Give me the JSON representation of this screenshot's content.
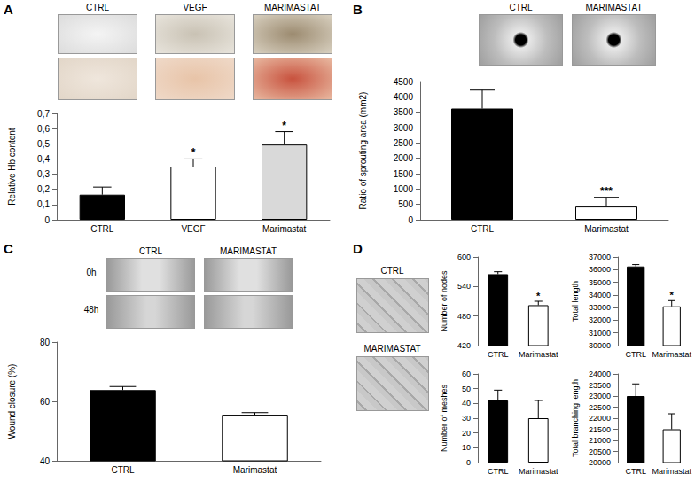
{
  "chart_data": [
    {
      "type": "bar",
      "y_label": "Relative Hb content",
      "categories": [
        "CTRL",
        "VEGF",
        "Marimastat"
      ],
      "values": [
        0.165,
        0.35,
        0.495
      ],
      "errors": [
        0.05,
        0.05,
        0.085
      ],
      "significance": [
        null,
        "*",
        "*"
      ],
      "colors": [
        "#000000",
        "#ffffff",
        "#d9d9d9"
      ],
      "ylim": [
        0,
        0.7
      ],
      "yticks": [
        0,
        {
          "value": 0.1,
          "label": "0,1"
        },
        {
          "value": 0.2,
          "label": "0,2"
        },
        {
          "value": 0.3,
          "label": "0,3"
        },
        {
          "value": 0.4,
          "label": "0,4"
        },
        {
          "value": 0.5,
          "label": "0,5"
        },
        {
          "value": 0.6,
          "label": "0,6"
        },
        {
          "value": 0.7,
          "label": "0,7"
        }
      ],
      "grid": false
    },
    {
      "type": "bar",
      "y_label": "Ratio of sprouting area (mm2)",
      "categories": [
        "CTRL",
        "Marimastat"
      ],
      "values": [
        3620,
        430
      ],
      "errors": [
        600,
        300
      ],
      "significance": [
        null,
        "***"
      ],
      "colors": [
        "#000000",
        "#ffffff"
      ],
      "ylim": [
        0,
        4500
      ],
      "yticks": [
        0,
        500,
        1000,
        1500,
        2000,
        2500,
        3000,
        3500,
        4000,
        4500
      ],
      "grid": false
    },
    {
      "type": "bar",
      "y_label": "Wound closure (%)",
      "categories": [
        "CTRL",
        "Marimastat"
      ],
      "values": [
        63.8,
        55.5
      ],
      "errors": [
        1.2,
        0.7
      ],
      "significance": [
        null,
        null
      ],
      "colors": [
        "#000000",
        "#ffffff"
      ],
      "ylim": [
        40,
        80
      ],
      "yticks": [
        40,
        60,
        80
      ],
      "grid": false
    },
    {
      "type": "bar",
      "y_label": "Number of nodes",
      "categories": [
        "CTRL",
        "Marimastat"
      ],
      "values": [
        565,
        502
      ],
      "errors": [
        5,
        8
      ],
      "significance": [
        null,
        "*"
      ],
      "colors": [
        "#000000",
        "#ffffff"
      ],
      "ylim": [
        420,
        600
      ],
      "yticks": [
        420,
        480,
        540,
        600
      ],
      "grid": false
    },
    {
      "type": "bar",
      "y_label": "Total length",
      "categories": [
        "CTRL",
        "Marimastat"
      ],
      "values": [
        36250,
        33100
      ],
      "errors": [
        150,
        450
      ],
      "significance": [
        null,
        "*"
      ],
      "colors": [
        "#000000",
        "#ffffff"
      ],
      "ylim": [
        30000,
        37000
      ],
      "yticks": [
        30000,
        31000,
        32000,
        33000,
        34000,
        35000,
        36000,
        37000
      ],
      "grid": false
    },
    {
      "type": "bar",
      "y_label": "Number of meshes",
      "categories": [
        "CTRL",
        "Marimastat"
      ],
      "values": [
        42,
        30
      ],
      "errors": [
        7,
        12
      ],
      "significance": [
        null,
        null
      ],
      "colors": [
        "#000000",
        "#ffffff"
      ],
      "ylim": [
        0,
        60
      ],
      "yticks": [
        0,
        10,
        20,
        30,
        40,
        50,
        60
      ],
      "grid": false
    },
    {
      "type": "bar",
      "y_label": "Total branching length",
      "categories": [
        "CTRL",
        "Marimastat"
      ],
      "values": [
        23000,
        21500
      ],
      "errors": [
        550,
        700
      ],
      "significance": [
        null,
        null
      ],
      "colors": [
        "#000000",
        "#ffffff"
      ],
      "ylim": [
        20000,
        24000
      ],
      "yticks": [
        20000,
        20500,
        21000,
        21500,
        22000,
        22500,
        23000,
        23500,
        24000
      ],
      "grid": false
    }
  ],
  "panels": [
    {
      "letter": "A",
      "photo_labels": [
        "CTRL",
        "VEGF",
        "MARIMASTAT"
      ]
    },
    {
      "letter": "B",
      "photo_labels": [
        "CTRL",
        "MARIMASTAT"
      ]
    },
    {
      "letter": "C",
      "photo_labels": [
        "CTRL",
        "MARIMASTAT"
      ],
      "time_labels": [
        "0h",
        "48h"
      ]
    },
    {
      "letter": "D",
      "photo_labels": [
        "CTRL",
        "MARIMASTAT"
      ]
    }
  ]
}
